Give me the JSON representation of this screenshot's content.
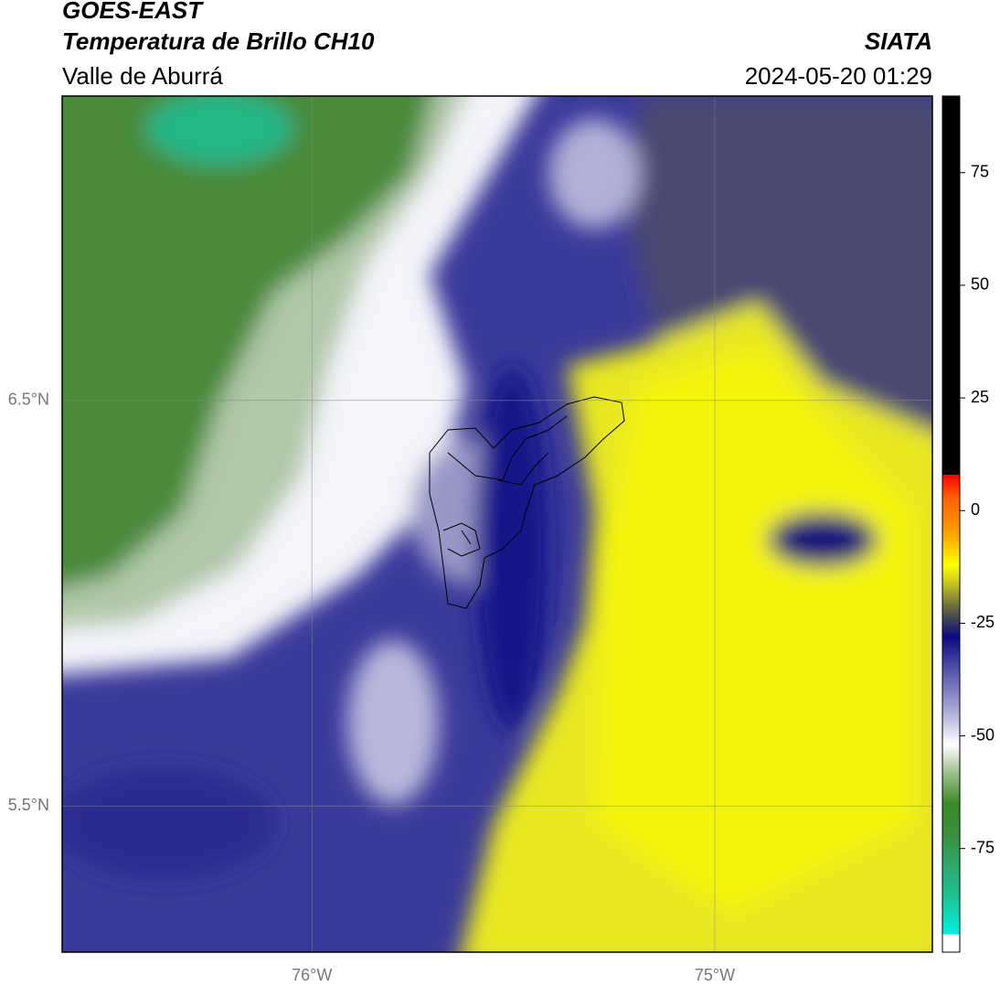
{
  "header": {
    "title": "GOES-EAST",
    "subtitle": "Temperatura de Brillo CH10",
    "region": "Valle de Aburrá",
    "source": "SIATA",
    "datetime": "2024-05-20 01:29"
  },
  "chart_data": {
    "type": "map",
    "xlim": [
      -76.62,
      -74.46
    ],
    "ylim": [
      5.14,
      7.25
    ],
    "xticks": [
      {
        "value": -76,
        "label": "76°W"
      },
      {
        "value": -75,
        "label": "75°W"
      }
    ],
    "yticks": [
      {
        "value": 6.5,
        "label": "6.5°N"
      },
      {
        "value": 5.5,
        "label": "5.5°N"
      }
    ],
    "grid": true,
    "colorbar": {
      "clim": [
        -98,
        92
      ],
      "ticks": [
        75,
        50,
        25,
        0,
        -25,
        -50,
        -75
      ],
      "colormap": [
        {
          "value": -98,
          "color": "#ffffff"
        },
        {
          "value": -94,
          "color": "#ffffff"
        },
        {
          "value": -94,
          "color": "#00f0e0"
        },
        {
          "value": -85,
          "color": "#20c090"
        },
        {
          "value": -72,
          "color": "#3a9040"
        },
        {
          "value": -65,
          "color": "#3a8a2a"
        },
        {
          "value": -58,
          "color": "#a0c090"
        },
        {
          "value": -52,
          "color": "#ffffff"
        },
        {
          "value": -45,
          "color": "#b0b0d8"
        },
        {
          "value": -35,
          "color": "#5050a8"
        },
        {
          "value": -28,
          "color": "#0a0a80"
        },
        {
          "value": -22,
          "color": "#606040"
        },
        {
          "value": -16,
          "color": "#c8c820"
        },
        {
          "value": -12,
          "color": "#ffff00"
        },
        {
          "value": -5,
          "color": "#ffa000"
        },
        {
          "value": 3,
          "color": "#ff6000"
        },
        {
          "value": 8,
          "color": "#ff0000"
        },
        {
          "value": 8,
          "color": "#000000"
        },
        {
          "value": 92,
          "color": "#000000"
        }
      ]
    }
  }
}
